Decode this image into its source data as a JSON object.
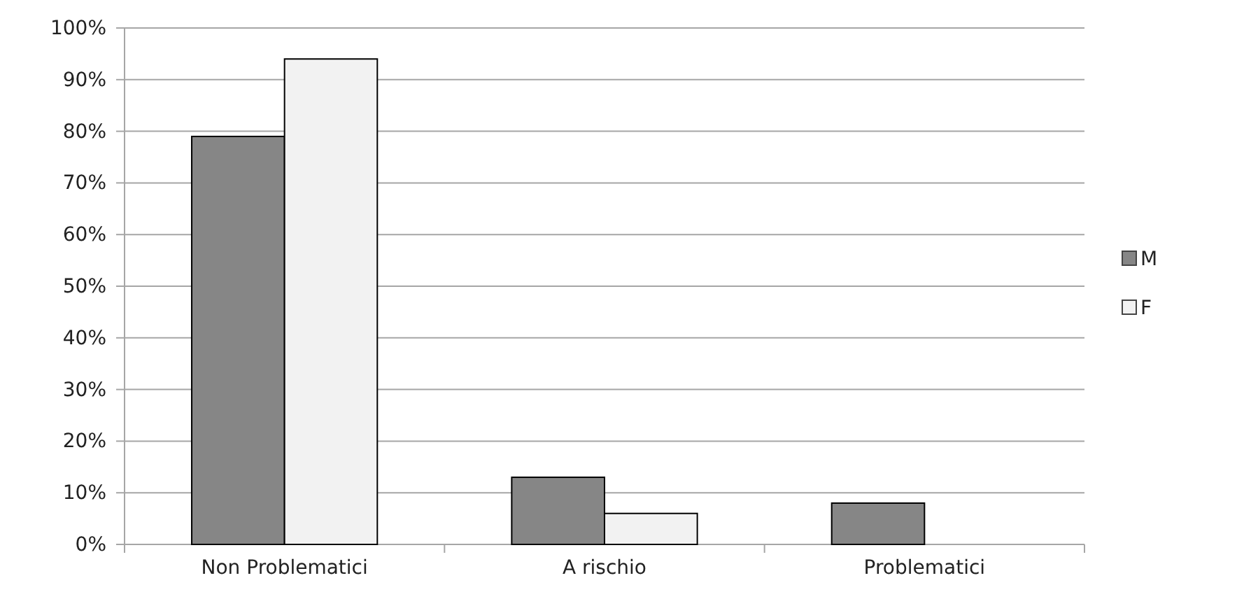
{
  "chart_data": {
    "type": "bar",
    "categories": [
      "Non Problematici",
      "A rischio",
      "Problematici"
    ],
    "series": [
      {
        "name": "M",
        "color": "#868686",
        "values": [
          79,
          13,
          8
        ]
      },
      {
        "name": "F",
        "color": "#f2f2f2",
        "values": [
          94,
          6,
          0
        ]
      }
    ],
    "ylim": [
      0,
      100
    ],
    "yticks": [
      {
        "value": 0,
        "label": "0%"
      },
      {
        "value": 10,
        "label": "10%"
      },
      {
        "value": 20,
        "label": "20%"
      },
      {
        "value": 30,
        "label": "30%"
      },
      {
        "value": 40,
        "label": "40%"
      },
      {
        "value": 50,
        "label": "50%"
      },
      {
        "value": 60,
        "label": "60%"
      },
      {
        "value": 70,
        "label": "70%"
      },
      {
        "value": 80,
        "label": "80%"
      },
      {
        "value": 90,
        "label": "90%"
      },
      {
        "value": 100,
        "label": "100%"
      }
    ],
    "grid": "y",
    "legend": "right"
  }
}
